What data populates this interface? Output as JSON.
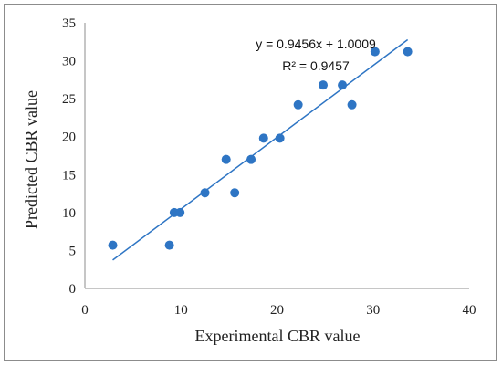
{
  "chart_data": {
    "type": "scatter",
    "title": "",
    "xlabel": "Experimental CBR value",
    "ylabel": "Predicted CBR value",
    "xlim": [
      0,
      40
    ],
    "ylim": [
      0,
      35
    ],
    "x_ticks": [
      0,
      10,
      20,
      30,
      40
    ],
    "y_ticks": [
      0,
      5,
      10,
      15,
      20,
      25,
      30,
      35
    ],
    "grid": false,
    "legend": "none",
    "series": [
      {
        "color": "#2e75c4",
        "points": [
          {
            "x": 2.9,
            "y": 5.7
          },
          {
            "x": 8.8,
            "y": 5.7
          },
          {
            "x": 9.3,
            "y": 10.0
          },
          {
            "x": 9.9,
            "y": 10.0
          },
          {
            "x": 12.5,
            "y": 12.6
          },
          {
            "x": 14.7,
            "y": 17.0
          },
          {
            "x": 15.6,
            "y": 12.6
          },
          {
            "x": 17.3,
            "y": 17.0
          },
          {
            "x": 18.6,
            "y": 19.8
          },
          {
            "x": 20.3,
            "y": 19.8
          },
          {
            "x": 22.2,
            "y": 24.2
          },
          {
            "x": 24.8,
            "y": 26.8
          },
          {
            "x": 26.8,
            "y": 26.8
          },
          {
            "x": 27.8,
            "y": 24.2
          },
          {
            "x": 30.2,
            "y": 31.2
          },
          {
            "x": 33.6,
            "y": 31.2
          }
        ]
      }
    ],
    "trendline": {
      "slope": 0.9456,
      "intercept": 1.0009,
      "x_range": [
        2.9,
        33.6
      ],
      "color": "#2e75c4",
      "equation_label": "y = 0.9456x + 1.0009",
      "r2_label": "R² = 0.9457"
    }
  }
}
